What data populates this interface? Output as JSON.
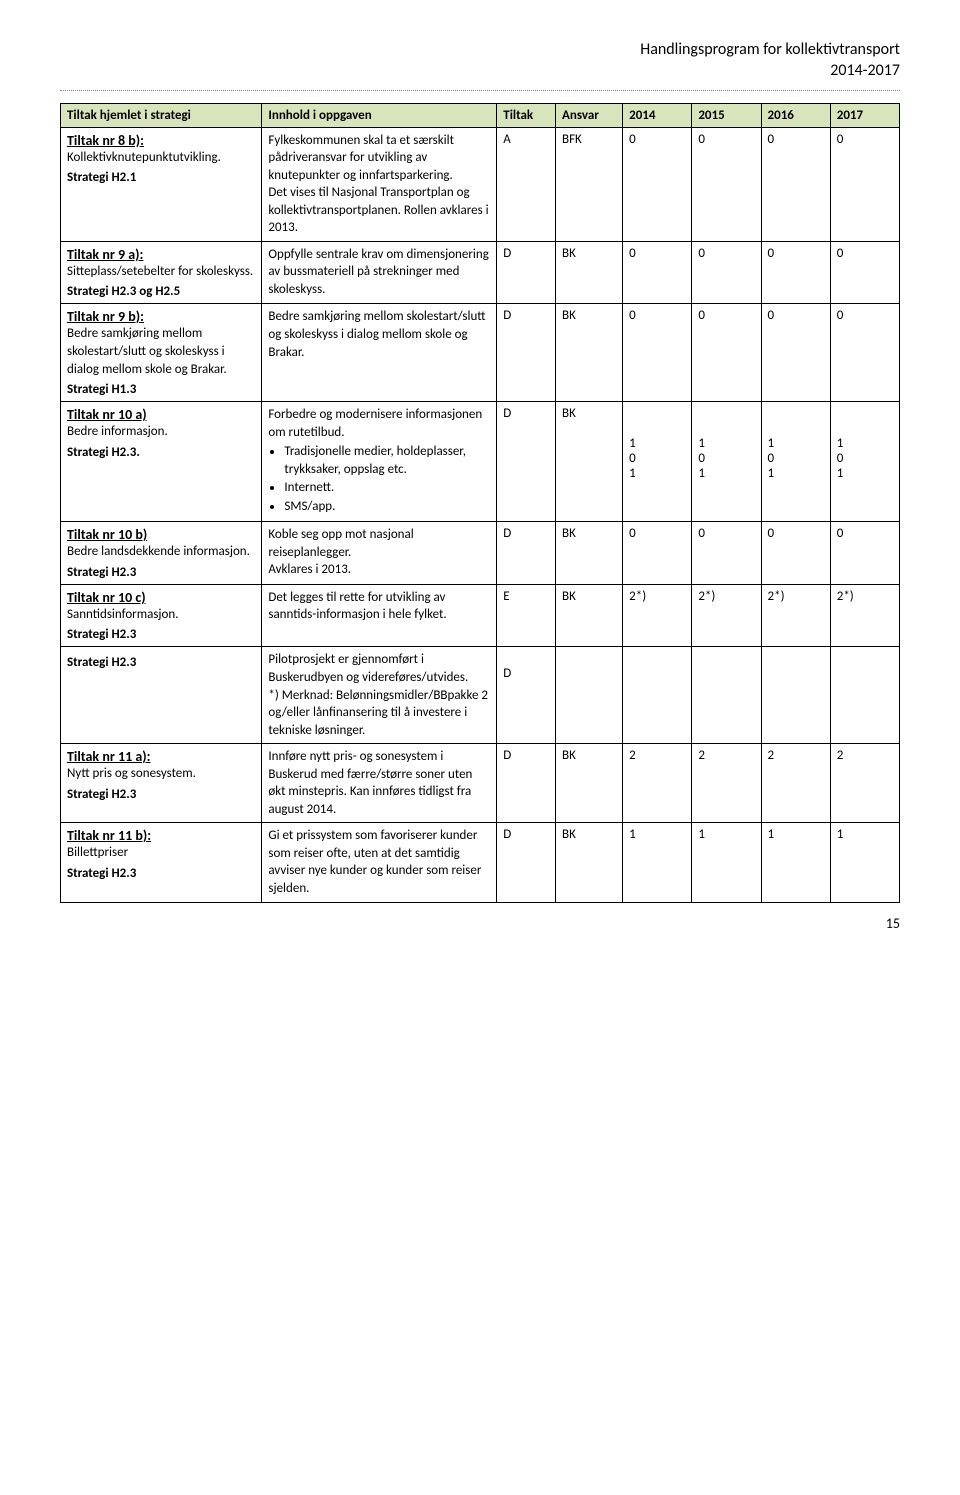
{
  "header": {
    "title_line1": "Handlingsprogram for kollektivtransport",
    "title_line2": "2014-2017"
  },
  "page_number": "15",
  "table_headers": {
    "c0": "Tiltak hjemlet i strategi",
    "c1": "Innhold i oppgaven",
    "c2": "Tiltak",
    "c3": "Ansvar",
    "c4": "2014",
    "c5": "2015",
    "c6": "2016",
    "c7": "2017"
  },
  "rows": {
    "r8b": {
      "title": "Tiltak nr 8 b):",
      "sub": "Kollektivknutepunktutvikling.",
      "strategy": "Strategi H2.1",
      "content": "Fylkeskommunen skal ta et særskilt pådriveransvar for utvikling av knutepunkter og innfartsparkering.\nDet vises til Nasjonal Transportplan og kollektivtransportplanen. Rollen avklares i 2013.",
      "tiltak": "A",
      "ansvar": "BFK",
      "v": [
        "0",
        "0",
        "0",
        "0"
      ]
    },
    "r9a": {
      "title": "Tiltak nr 9 a):",
      "sub": "Sitteplass/setebelter for skoleskyss.",
      "strategy": "Strategi H2.3 og H2.5",
      "content": "Oppfylle sentrale krav om dimensjonering av bussmateriell på strekninger med skoleskyss.",
      "tiltak": "D",
      "ansvar": "BK",
      "v": [
        "0",
        "0",
        "0",
        "0"
      ]
    },
    "r9b": {
      "title": "Tiltak nr 9 b):",
      "sub": "Bedre samkjøring mellom skolestart/slutt og skoleskyss i dialog mellom skole og Brakar.",
      "strategy": "Strategi H1.3",
      "content": "Bedre samkjøring mellom skolestart/slutt og skoleskyss i dialog mellom skole og Brakar.",
      "tiltak": "D",
      "ansvar": "BK",
      "v": [
        "0",
        "0",
        "0",
        "0"
      ]
    },
    "r10a": {
      "title": "Tiltak nr 10 a)",
      "sub": "Bedre informasjon.",
      "strategy": "Strategi H2.3.",
      "content_lead": "Forbedre og modernisere informasjonen om rutetilbud.",
      "bullets": [
        "Tradisjonelle medier, holdeplasser, trykksaker, oppslag etc.",
        "Internett.",
        "SMS/app."
      ],
      "tiltak": "D",
      "ansvar": "BK",
      "lines": [
        {
          "v": [
            "1",
            "1",
            "1",
            "1"
          ]
        },
        {
          "v": [
            "0",
            "0",
            "0",
            "0"
          ]
        },
        {
          "v": [
            "1",
            "1",
            "1",
            "1"
          ]
        }
      ]
    },
    "r10b": {
      "title": "Tiltak nr 10 b)",
      "sub": "Bedre landsdekkende informasjon.",
      "strategy": "Strategi H2.3",
      "content": "Koble seg opp mot nasjonal reiseplanlegger.\nAvklares i 2013.",
      "tiltak": "D",
      "ansvar": "BK",
      "v": [
        "0",
        "0",
        "0",
        "0"
      ]
    },
    "r10c": {
      "title": "Tiltak nr 10 c)",
      "sub": "Sanntidsinformasjon.",
      "strategy": "Strategi H2.3",
      "content": "Det legges til rette for utvikling av sanntids-informasjon i hele fylket.",
      "tiltak": "E",
      "ansvar": "BK",
      "v": [
        "2*)",
        "2*)",
        "2*)",
        "2*)"
      ]
    },
    "r10c2": {
      "strategy": "Strategi H2.3",
      "content": "Pilotprosjekt er gjennomført i Buskerudbyen og videreføres/utvides.\n*) Merknad: Belønningsmidler/BBpakke 2 og/eller lånfinansering til å investere i tekniske løsninger.",
      "tiltak": "D"
    },
    "r11a": {
      "title": "Tiltak nr 11 a):",
      "sub": "Nytt pris og sonesystem.",
      "strategy": "Strategi H2.3",
      "content": "Innføre nytt pris- og sonesystem i Buskerud med færre/større soner uten økt minstepris. Kan innføres tidligst fra august 2014.",
      "tiltak": "D",
      "ansvar": "BK",
      "v": [
        "2",
        "2",
        "2",
        "2"
      ]
    },
    "r11b": {
      "title": "Tiltak nr 11 b):",
      "sub": "Billettpriser",
      "strategy": "Strategi H2.3",
      "content": "Gi et prissystem som favoriserer kunder som reiser ofte, uten at det samtidig avviser nye kunder og kunder som reiser sjelden.",
      "tiltak": "D",
      "ansvar": "BK",
      "v": [
        "1",
        "1",
        "1",
        "1"
      ]
    }
  }
}
